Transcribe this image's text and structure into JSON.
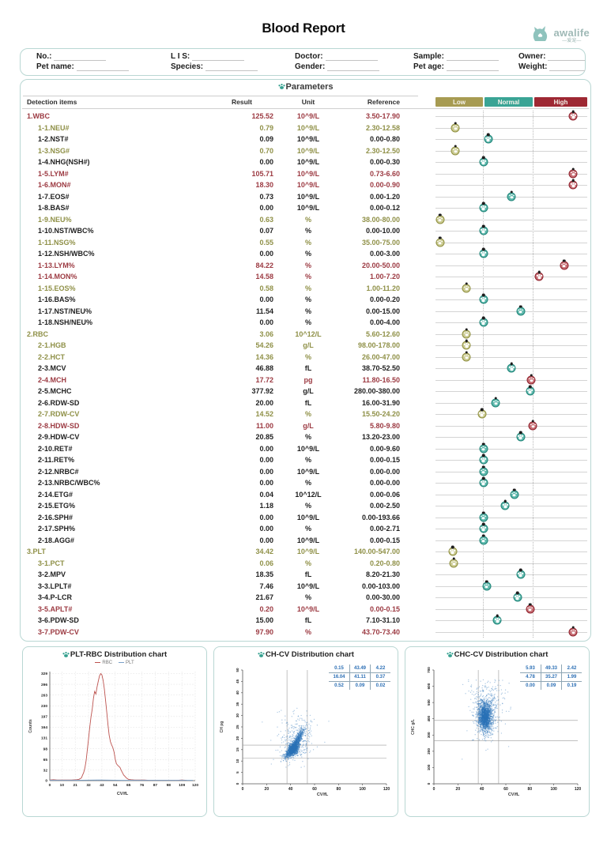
{
  "title": "Blood Report",
  "logo": {
    "brand": "awalife",
    "sub": "—爱宠—",
    "color": "#8fc3bd"
  },
  "patient_fields": [
    "No.:",
    "L I S:",
    "Doctor:",
    "Sample:",
    "Owner:",
    "Pet name:",
    "Species:",
    "Gender:",
    "Pet age:",
    "Weight:"
  ],
  "parameters": {
    "section_title": "Parameters",
    "columns": {
      "item": "Detection items",
      "result": "Result",
      "unit": "Unit",
      "ref": "Reference"
    },
    "lanes": [
      {
        "label": "Low",
        "color": "#a79b52"
      },
      {
        "label": "Normal",
        "color": "#3aa495"
      },
      {
        "label": "High",
        "color": "#9e2833"
      }
    ],
    "rows": [
      {
        "name": "1.WBC",
        "result": "125.52",
        "unit": "10^9/L",
        "ref": "3.50-17.90",
        "status": "high",
        "pos": 90,
        "section": true
      },
      {
        "name": "1-1.NEU#",
        "result": "0.79",
        "unit": "10^9/L",
        "ref": "2.30-12.58",
        "status": "low",
        "pos": 14
      },
      {
        "name": "1-2.NST#",
        "result": "0.09",
        "unit": "10^9/L",
        "ref": "0.00-0.80",
        "status": "normal",
        "pos": 35
      },
      {
        "name": "1-3.NSG#",
        "result": "0.70",
        "unit": "10^9/L",
        "ref": "2.30-12.50",
        "status": "low",
        "pos": 14
      },
      {
        "name": "1-4.NHG(NSH#)",
        "result": "0.00",
        "unit": "10^9/L",
        "ref": "0.00-0.30",
        "status": "normal",
        "pos": 32
      },
      {
        "name": "1-5.LYM#",
        "result": "105.71",
        "unit": "10^9/L",
        "ref": "0.73-6.60",
        "status": "high",
        "pos": 90
      },
      {
        "name": "1-6.MON#",
        "result": "18.30",
        "unit": "10^9/L",
        "ref": "0.00-0.90",
        "status": "high",
        "pos": 90
      },
      {
        "name": "1-7.EOS#",
        "result": "0.73",
        "unit": "10^9/L",
        "ref": "0.00-1.20",
        "status": "normal",
        "pos": 50
      },
      {
        "name": "1-8.BAS#",
        "result": "0.00",
        "unit": "10^9/L",
        "ref": "0.00-0.12",
        "status": "normal",
        "pos": 32
      },
      {
        "name": "1-9.NEU%",
        "result": "0.63",
        "unit": "%",
        "ref": "38.00-80.00",
        "status": "low",
        "pos": 4
      },
      {
        "name": "1-10.NST/WBC%",
        "result": "0.07",
        "unit": "%",
        "ref": "0.00-10.00",
        "status": "normal",
        "pos": 32
      },
      {
        "name": "1-11.NSG%",
        "result": "0.55",
        "unit": "%",
        "ref": "35.00-75.00",
        "status": "low",
        "pos": 4
      },
      {
        "name": "1-12.NSH/WBC%",
        "result": "0.00",
        "unit": "%",
        "ref": "0.00-3.00",
        "status": "normal",
        "pos": 32
      },
      {
        "name": "1-13.LYM%",
        "result": "84.22",
        "unit": "%",
        "ref": "20.00-50.00",
        "status": "high",
        "pos": 84
      },
      {
        "name": "1-14.MON%",
        "result": "14.58",
        "unit": "%",
        "ref": "1.00-7.20",
        "status": "high",
        "pos": 68
      },
      {
        "name": "1-15.EOS%",
        "result": "0.58",
        "unit": "%",
        "ref": "1.00-11.20",
        "status": "low",
        "pos": 21
      },
      {
        "name": "1-16.BAS%",
        "result": "0.00",
        "unit": "%",
        "ref": "0.00-0.20",
        "status": "normal",
        "pos": 32
      },
      {
        "name": "1-17.NST/NEU%",
        "result": "11.54",
        "unit": "%",
        "ref": "0.00-15.00",
        "status": "normal",
        "pos": 56
      },
      {
        "name": "1-18.NSH/NEU%",
        "result": "0.00",
        "unit": "%",
        "ref": "0.00-4.00",
        "status": "normal",
        "pos": 32
      },
      {
        "name": "2.RBC",
        "result": "3.06",
        "unit": "10^12/L",
        "ref": "5.60-12.60",
        "status": "low",
        "pos": 21,
        "section": true
      },
      {
        "name": "2-1.HGB",
        "result": "54.26",
        "unit": "g/L",
        "ref": "98.00-178.00",
        "status": "low",
        "pos": 21
      },
      {
        "name": "2-2.HCT",
        "result": "14.36",
        "unit": "%",
        "ref": "26.00-47.00",
        "status": "low",
        "pos": 21
      },
      {
        "name": "2-3.MCV",
        "result": "46.88",
        "unit": "fL",
        "ref": "38.70-52.50",
        "status": "normal",
        "pos": 50
      },
      {
        "name": "2-4.MCH",
        "result": "17.72",
        "unit": "pg",
        "ref": "11.80-16.50",
        "status": "high",
        "pos": 63
      },
      {
        "name": "2-5.MCHC",
        "result": "377.92",
        "unit": "g/L",
        "ref": "280.00-380.00",
        "status": "normal",
        "pos": 62
      },
      {
        "name": "2-6.RDW-SD",
        "result": "20.00",
        "unit": "fL",
        "ref": "16.00-31.90",
        "status": "normal",
        "pos": 40
      },
      {
        "name": "2-7.RDW-CV",
        "result": "14.52",
        "unit": "%",
        "ref": "15.50-24.20",
        "status": "low",
        "pos": 31
      },
      {
        "name": "2-8.HDW-SD",
        "result": "11.00",
        "unit": "g/L",
        "ref": "5.80-9.80",
        "status": "high",
        "pos": 64
      },
      {
        "name": "2-9.HDW-CV",
        "result": "20.85",
        "unit": "%",
        "ref": "13.20-23.00",
        "status": "normal",
        "pos": 56
      },
      {
        "name": "2-10.RET#",
        "result": "0.00",
        "unit": "10^9/L",
        "ref": "0.00-9.60",
        "status": "normal",
        "pos": 32
      },
      {
        "name": "2-11.RET%",
        "result": "0.00",
        "unit": "%",
        "ref": "0.00-0.15",
        "status": "normal",
        "pos": 32
      },
      {
        "name": "2-12.NRBC#",
        "result": "0.00",
        "unit": "10^9/L",
        "ref": "0.00-0.00",
        "status": "normal",
        "pos": 32
      },
      {
        "name": "2-13.NRBC/WBC%",
        "result": "0.00",
        "unit": "%",
        "ref": "0.00-0.00",
        "status": "normal",
        "pos": 32
      },
      {
        "name": "2-14.ETG#",
        "result": "0.04",
        "unit": "10^12/L",
        "ref": "0.00-0.06",
        "status": "normal",
        "pos": 52
      },
      {
        "name": "2-15.ETG%",
        "result": "1.18",
        "unit": "%",
        "ref": "0.00-2.50",
        "status": "normal",
        "pos": 46
      },
      {
        "name": "2-16.SPH#",
        "result": "0.00",
        "unit": "10^9/L",
        "ref": "0.00-193.66",
        "status": "normal",
        "pos": 32
      },
      {
        "name": "2-17.SPH%",
        "result": "0.00",
        "unit": "%",
        "ref": "0.00-2.71",
        "status": "normal",
        "pos": 32
      },
      {
        "name": "2-18.AGG#",
        "result": "0.00",
        "unit": "10^9/L",
        "ref": "0.00-0.15",
        "status": "normal",
        "pos": 32
      },
      {
        "name": "3.PLT",
        "result": "34.42",
        "unit": "10^9/L",
        "ref": "140.00-547.00",
        "status": "low",
        "pos": 12,
        "section": true
      },
      {
        "name": "3-1.PCT",
        "result": "0.06",
        "unit": "%",
        "ref": "0.20-0.80",
        "status": "low",
        "pos": 13
      },
      {
        "name": "3-2.MPV",
        "result": "18.35",
        "unit": "fL",
        "ref": "8.20-21.30",
        "status": "normal",
        "pos": 56
      },
      {
        "name": "3-3.LPLT#",
        "result": "7.46",
        "unit": "10^9/L",
        "ref": "0.00-103.00",
        "status": "normal",
        "pos": 34
      },
      {
        "name": "3-4.P-LCR",
        "result": "21.67",
        "unit": "%",
        "ref": "0.00-30.00",
        "status": "normal",
        "pos": 54
      },
      {
        "name": "3-5.APLT#",
        "result": "0.20",
        "unit": "10^9/L",
        "ref": "0.00-0.15",
        "status": "high",
        "pos": 62
      },
      {
        "name": "3-6.PDW-SD",
        "result": "15.00",
        "unit": "fL",
        "ref": "7.10-31.10",
        "status": "normal",
        "pos": 41
      },
      {
        "name": "3-7.PDW-CV",
        "result": "97.90",
        "unit": "%",
        "ref": "43.70-73.40",
        "status": "high",
        "pos": 90
      }
    ]
  },
  "chart_data": [
    {
      "type": "line",
      "title": "PLT-RBC Distribution chart",
      "xlabel": "CV/fL",
      "ylabel": "Counts",
      "xlim": [
        0,
        120
      ],
      "ylim": [
        0,
        335
      ],
      "x_ticks": [
        0,
        10,
        21,
        32,
        43,
        54,
        65,
        76,
        87,
        98,
        109,
        120
      ],
      "y_ticks": [
        0,
        32,
        65,
        98,
        131,
        164,
        197,
        230,
        263,
        296,
        329
      ],
      "grid": true,
      "legend_position": "top",
      "series": [
        {
          "name": "RBC",
          "color": "#bd534f",
          "points": [
            [
              0,
              2
            ],
            [
              3,
              3
            ],
            [
              6,
              2
            ],
            [
              10,
              2
            ],
            [
              14,
              2
            ],
            [
              18,
              2
            ],
            [
              22,
              3
            ],
            [
              24,
              4
            ],
            [
              26,
              8
            ],
            [
              28,
              25
            ],
            [
              29,
              40
            ],
            [
              30,
              62
            ],
            [
              31,
              95
            ],
            [
              32,
              130
            ],
            [
              33,
              165
            ],
            [
              34,
              195
            ],
            [
              35,
              220
            ],
            [
              36,
              252
            ],
            [
              37,
              274
            ],
            [
              38,
              266
            ],
            [
              39,
              288
            ],
            [
              40,
              305
            ],
            [
              41,
              322
            ],
            [
              42,
              329
            ],
            [
              43,
              325
            ],
            [
              44,
              308
            ],
            [
              45,
              282
            ],
            [
              46,
              248
            ],
            [
              47,
              210
            ],
            [
              48,
              172
            ],
            [
              49,
              140
            ],
            [
              50,
              120
            ],
            [
              51,
              110
            ],
            [
              52,
              102
            ],
            [
              53,
              88
            ],
            [
              54,
              66
            ],
            [
              55,
              52
            ],
            [
              56,
              47
            ],
            [
              57,
              44
            ],
            [
              58,
              40
            ],
            [
              59,
              31
            ],
            [
              60,
              24
            ],
            [
              61,
              17
            ],
            [
              62,
              13
            ],
            [
              63,
              9
            ],
            [
              64,
              6
            ],
            [
              65,
              4
            ],
            [
              67,
              3
            ],
            [
              70,
              2
            ],
            [
              74,
              2
            ],
            [
              78,
              2
            ],
            [
              82,
              1
            ],
            [
              86,
              1
            ],
            [
              90,
              1
            ],
            [
              95,
              1
            ],
            [
              100,
              1
            ],
            [
              105,
              1
            ],
            [
              109,
              2
            ],
            [
              113,
              1
            ]
          ]
        },
        {
          "name": "PLT",
          "color": "#7aa0c8",
          "points": [
            [
              0,
              1
            ],
            [
              20,
              1
            ],
            [
              40,
              2
            ],
            [
              60,
              1
            ],
            [
              80,
              1
            ],
            [
              100,
              1
            ],
            [
              118,
              1
            ]
          ]
        }
      ]
    },
    {
      "type": "scatter",
      "title": "CH-CV Distribution chart",
      "xlabel": "CV/fL",
      "ylabel": "CH pg",
      "xlim": [
        0,
        120
      ],
      "ylim": [
        0,
        50
      ],
      "x_ticks": [
        0,
        20,
        40,
        60,
        80,
        100,
        120
      ],
      "y_ticks": [
        0,
        5,
        10,
        15,
        20,
        25,
        30,
        35,
        40,
        45,
        50
      ],
      "vlines": [
        37,
        54
      ],
      "hlines": [
        17,
        11.2
      ],
      "dot_color": "#2b72b8",
      "stats": [
        [
          "0.15",
          "43.49",
          "4.22"
        ],
        [
          "16.04",
          "41.11",
          "0.37"
        ],
        [
          "0.52",
          "0.09",
          "0.02"
        ]
      ],
      "cluster": {
        "cx": 43,
        "cy": 15.8,
        "sx": 5,
        "sy": 3.4,
        "seed": 42,
        "n": 2400
      }
    },
    {
      "type": "scatter",
      "title": "CHC-CV Distribution chart",
      "xlabel": "CV/fL",
      "ylabel": "CHC g/L",
      "xlim": [
        0,
        120
      ],
      "ylim": [
        0,
        700
      ],
      "x_ticks": [
        0,
        20,
        40,
        60,
        80,
        100,
        120
      ],
      "y_ticks": [
        0,
        100,
        200,
        300,
        400,
        500,
        600,
        700
      ],
      "vlines": [
        37,
        54
      ],
      "hlines": [
        390,
        265
      ],
      "dot_color": "#2b72b8",
      "stats": [
        [
          "5.93",
          "49.33",
          "2.42"
        ],
        [
          "4.78",
          "35.27",
          "1.99"
        ],
        [
          "0.00",
          "0.09",
          "0.19"
        ]
      ],
      "cluster": {
        "cx": 43,
        "cy": 420,
        "sx": 4.5,
        "sy": 75,
        "seed": 1234,
        "n": 2400
      }
    }
  ]
}
